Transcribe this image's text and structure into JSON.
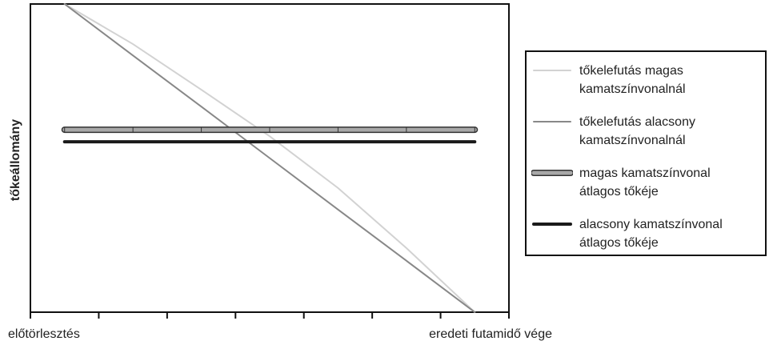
{
  "chart_data": {
    "type": "line",
    "ylabel": "tőkeállomány",
    "x_start_label": "előtörlesztés",
    "x_end_label": "eredeti futamidő vége",
    "xlim": [
      0,
      7
    ],
    "xticks": [
      0,
      1,
      2,
      3,
      4,
      5,
      6,
      7
    ],
    "ylim": [
      0,
      100
    ],
    "x": [
      0.5,
      1.5,
      2.5,
      3.5,
      4.5,
      5.5,
      6.5
    ],
    "series": [
      {
        "name": "tőkelefutás magas kamatszínvonalnál",
        "color": "#d2d2d2",
        "linewidth": 2,
        "values": [
          100,
          87,
          72.2,
          57.1,
          40.3,
          20.8,
          0
        ]
      },
      {
        "name": "tőkelefutás alacsony kamatszínvonalnál",
        "color": "#888888",
        "linewidth": 2,
        "values": [
          100,
          83.3,
          66.7,
          50,
          33.3,
          16.7,
          0
        ]
      },
      {
        "name": "magas kamatszínvonal átlagos tőkéje",
        "color": "#a8a8a8",
        "linewidth": 5,
        "outline_color": "#333333",
        "markers": true,
        "values": [
          59.2,
          59.2,
          59.2,
          59.2,
          59.2,
          59.2,
          59.2
        ]
      },
      {
        "name": "alacsony kamatszínvonal átlagos tőkéje",
        "color": "#1a1a1a",
        "linewidth": 4,
        "values": [
          55.3,
          55.3,
          55.3,
          55.3,
          55.3,
          55.3,
          55.3
        ]
      }
    ]
  }
}
